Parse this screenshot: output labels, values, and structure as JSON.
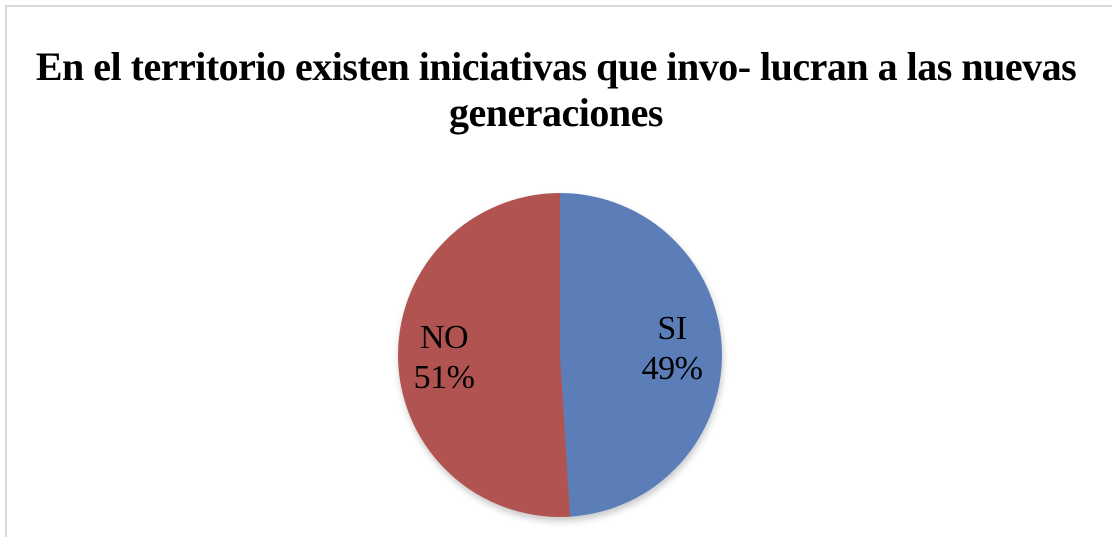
{
  "chart_data": {
    "type": "pie",
    "title": "En el territorio existen iniciativas que involucran a las nuevas generaciones",
    "title_lines": [
      "En el territorio existen iniciativas que invo-",
      "lucran a las nuevas generaciones"
    ],
    "segments": [
      {
        "label": "SI",
        "value": 49,
        "pct_label": "49%",
        "color": "#5C7EB8"
      },
      {
        "label": "NO",
        "value": 51,
        "pct_label": "51%",
        "color": "#B15451"
      }
    ],
    "start_angle_deg": 0,
    "direction": "clockwise",
    "legend": "none",
    "label_style": "inside slices, category name above percentage",
    "background": "#FFFFFF",
    "frame_border_color": "#D9D9D9",
    "text_color": "#000000"
  }
}
